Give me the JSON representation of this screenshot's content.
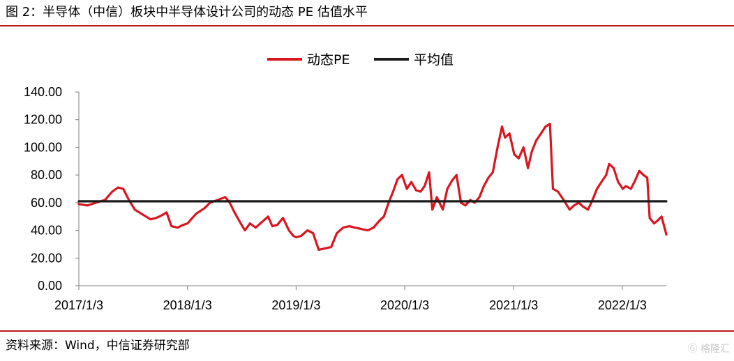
{
  "header": {
    "title": "图 2：半导体（中信）板块中半导体设计公司的动态 PE 估值水平"
  },
  "footer": {
    "source": "资料来源：Wind，中信证券研究部"
  },
  "watermark": {
    "text": "格隆汇"
  },
  "colors": {
    "accent": "#c0161d",
    "pe_line": "#d9161f",
    "avg_line": "#1a1a1a",
    "axis": "#808080"
  },
  "chart_data": {
    "type": "line",
    "title": "",
    "xlabel": "",
    "ylabel": "",
    "ylim": [
      0,
      140
    ],
    "yticks": [
      "0.00",
      "20.00",
      "40.00",
      "60.00",
      "80.00",
      "100.00",
      "120.00",
      "140.00"
    ],
    "xticks": [
      "2017/1/3",
      "2018/1/3",
      "2019/1/3",
      "2020/1/3",
      "2021/1/3",
      "2022/1/3"
    ],
    "xlim": [
      "2017-01-03",
      "2022-05-31"
    ],
    "legend_position": "top-center",
    "series": [
      {
        "name": "动态PE",
        "points": [
          [
            "2017-01-03",
            59
          ],
          [
            "2017-02-01",
            58
          ],
          [
            "2017-03-01",
            60
          ],
          [
            "2017-04-01",
            62
          ],
          [
            "2017-04-25",
            68
          ],
          [
            "2017-05-15",
            71
          ],
          [
            "2017-06-01",
            70
          ],
          [
            "2017-06-20",
            62
          ],
          [
            "2017-07-10",
            55
          ],
          [
            "2017-08-01",
            52
          ],
          [
            "2017-09-01",
            48
          ],
          [
            "2017-09-20",
            49
          ],
          [
            "2017-10-10",
            51
          ],
          [
            "2017-10-25",
            53
          ],
          [
            "2017-11-10",
            43
          ],
          [
            "2017-12-01",
            42
          ],
          [
            "2017-12-20",
            44
          ],
          [
            "2018-01-03",
            45
          ],
          [
            "2018-02-01",
            52
          ],
          [
            "2018-03-01",
            56
          ],
          [
            "2018-03-20",
            60
          ],
          [
            "2018-04-15",
            62
          ],
          [
            "2018-05-10",
            64
          ],
          [
            "2018-05-25",
            60
          ],
          [
            "2018-06-10",
            53
          ],
          [
            "2018-07-01",
            45
          ],
          [
            "2018-07-15",
            40
          ],
          [
            "2018-08-01",
            45
          ],
          [
            "2018-08-20",
            42
          ],
          [
            "2018-09-10",
            46
          ],
          [
            "2018-10-01",
            50
          ],
          [
            "2018-10-15",
            43
          ],
          [
            "2018-11-01",
            44
          ],
          [
            "2018-11-20",
            49
          ],
          [
            "2018-12-10",
            40
          ],
          [
            "2018-12-25",
            36
          ],
          [
            "2019-01-03",
            35
          ],
          [
            "2019-01-20",
            36
          ],
          [
            "2019-02-10",
            40
          ],
          [
            "2019-03-01",
            38
          ],
          [
            "2019-03-20",
            26
          ],
          [
            "2019-04-10",
            27
          ],
          [
            "2019-05-01",
            28
          ],
          [
            "2019-05-20",
            38
          ],
          [
            "2019-06-10",
            42
          ],
          [
            "2019-07-01",
            43
          ],
          [
            "2019-07-20",
            42
          ],
          [
            "2019-08-10",
            41
          ],
          [
            "2019-09-01",
            40
          ],
          [
            "2019-09-20",
            42
          ],
          [
            "2019-10-10",
            47
          ],
          [
            "2019-10-25",
            50
          ],
          [
            "2019-11-10",
            60
          ],
          [
            "2019-11-25",
            68
          ],
          [
            "2019-12-10",
            77
          ],
          [
            "2019-12-25",
            80
          ],
          [
            "2020-01-10",
            70
          ],
          [
            "2020-01-25",
            75
          ],
          [
            "2020-02-10",
            69
          ],
          [
            "2020-02-25",
            68
          ],
          [
            "2020-03-10",
            72
          ],
          [
            "2020-03-25",
            82
          ],
          [
            "2020-04-05",
            55
          ],
          [
            "2020-04-20",
            64
          ],
          [
            "2020-05-10",
            55
          ],
          [
            "2020-05-25",
            70
          ],
          [
            "2020-06-10",
            76
          ],
          [
            "2020-06-25",
            80
          ],
          [
            "2020-07-10",
            60
          ],
          [
            "2020-07-25",
            58
          ],
          [
            "2020-08-10",
            62
          ],
          [
            "2020-08-25",
            60
          ],
          [
            "2020-09-10",
            64
          ],
          [
            "2020-09-25",
            72
          ],
          [
            "2020-10-10",
            78
          ],
          [
            "2020-10-25",
            82
          ],
          [
            "2020-11-10",
            100
          ],
          [
            "2020-11-25",
            115
          ],
          [
            "2020-12-05",
            107
          ],
          [
            "2020-12-20",
            110
          ],
          [
            "2021-01-05",
            95
          ],
          [
            "2021-01-20",
            92
          ],
          [
            "2021-02-05",
            100
          ],
          [
            "2021-02-20",
            85
          ],
          [
            "2021-03-05",
            97
          ],
          [
            "2021-03-20",
            105
          ],
          [
            "2021-04-05",
            110
          ],
          [
            "2021-04-20",
            115
          ],
          [
            "2021-05-05",
            117
          ],
          [
            "2021-05-15",
            70
          ],
          [
            "2021-06-01",
            68
          ],
          [
            "2021-06-20",
            62
          ],
          [
            "2021-07-10",
            55
          ],
          [
            "2021-07-25",
            58
          ],
          [
            "2021-08-10",
            60
          ],
          [
            "2021-08-25",
            57
          ],
          [
            "2021-09-10",
            55
          ],
          [
            "2021-09-25",
            62
          ],
          [
            "2021-10-10",
            70
          ],
          [
            "2021-10-25",
            75
          ],
          [
            "2021-11-10",
            80
          ],
          [
            "2021-11-20",
            88
          ],
          [
            "2021-12-05",
            85
          ],
          [
            "2021-12-20",
            75
          ],
          [
            "2022-01-05",
            70
          ],
          [
            "2022-01-15",
            72
          ],
          [
            "2022-02-01",
            70
          ],
          [
            "2022-02-15",
            76
          ],
          [
            "2022-03-01",
            83
          ],
          [
            "2022-03-15",
            80
          ],
          [
            "2022-03-28",
            78
          ],
          [
            "2022-04-05",
            49
          ],
          [
            "2022-04-20",
            45
          ],
          [
            "2022-05-01",
            47
          ],
          [
            "2022-05-15",
            50
          ],
          [
            "2022-05-25",
            42
          ],
          [
            "2022-05-31",
            37
          ]
        ]
      },
      {
        "name": "平均值",
        "points": [
          [
            "2017-01-03",
            61
          ],
          [
            "2022-05-31",
            61
          ]
        ]
      }
    ]
  }
}
